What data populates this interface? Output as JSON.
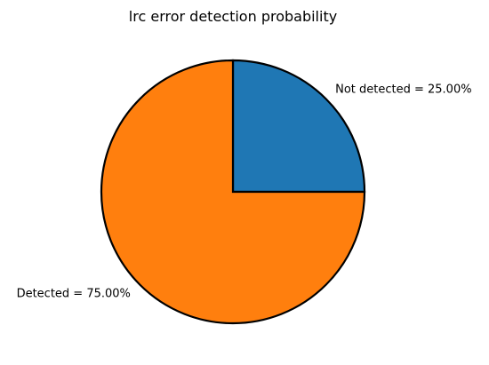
{
  "chart_data": {
    "type": "pie",
    "title": "lrc error detection probability",
    "slices": [
      {
        "label": "Not detected = 25.00%",
        "value": 25.0,
        "color": "#1f77b4"
      },
      {
        "label": "Detected = 75.00%",
        "value": 75.0,
        "color": "#ff7f0e"
      }
    ],
    "edge_color": "#000000"
  }
}
